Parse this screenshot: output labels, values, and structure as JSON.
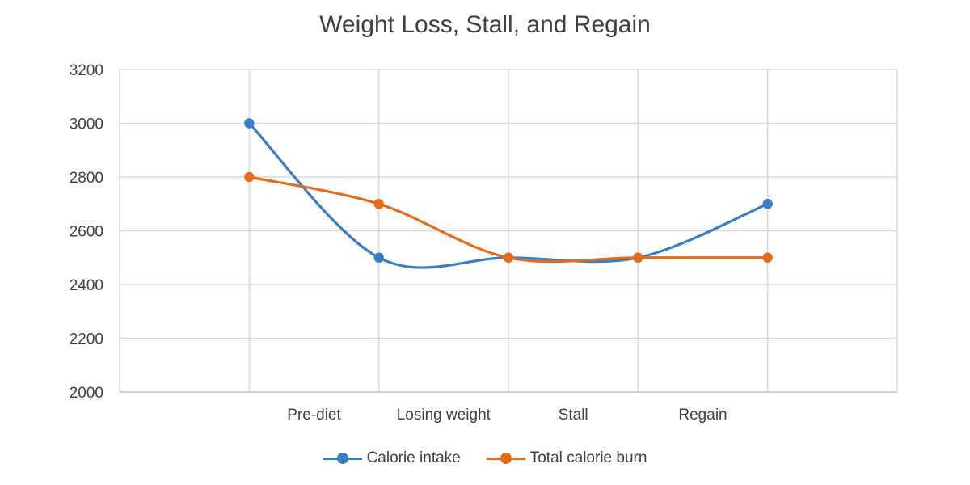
{
  "chart_data": {
    "type": "line",
    "title": "Weight Loss, Stall, and Regain",
    "categories": [
      "Pre-diet",
      "Losing weight",
      "Stall",
      "Regain"
    ],
    "x": [
      1,
      2,
      3,
      4,
      5
    ],
    "ylim": [
      2000,
      3200
    ],
    "yticks": [
      2000,
      2200,
      2400,
      2600,
      2800,
      3000,
      3200
    ],
    "xlim": [
      0,
      6
    ],
    "grid": true,
    "smooth": true,
    "legend": "bottom",
    "series": [
      {
        "name": "Calorie intake",
        "color": "#3b7dc4",
        "values": [
          3000,
          2500,
          2500,
          2500,
          2700
        ]
      },
      {
        "name": "Total calorie burn",
        "color": "#e46c1c",
        "values": [
          2800,
          2700,
          2500,
          2500,
          2500
        ]
      }
    ]
  }
}
